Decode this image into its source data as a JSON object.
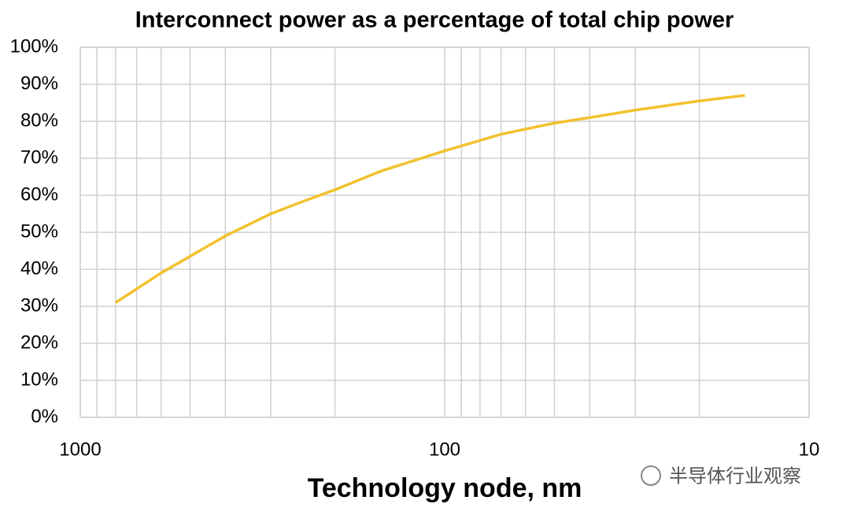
{
  "chart_data": {
    "type": "line",
    "title": "Interconnect power as a percentage of total chip power",
    "x_label": "Technology node, nm",
    "x": [
      800,
      600,
      500,
      400,
      300,
      250,
      200,
      150,
      100,
      70,
      50,
      40,
      30,
      20,
      15
    ],
    "series": [
      {
        "name": "Interconnect power",
        "color": "#f2c12e",
        "values": [
          31,
          39,
          43.5,
          49,
          55,
          58,
          61.5,
          66.5,
          72,
          76.5,
          79.5,
          81,
          83,
          85.5,
          87
        ]
      }
    ],
    "xscale": "log",
    "xlim": [
      1000,
      10
    ],
    "xticks": [
      1000,
      100,
      10
    ],
    "ylim": [
      0,
      100
    ],
    "yticks": [
      {
        "value": 0,
        "label": "0%"
      },
      {
        "value": 10,
        "label": "10%"
      },
      {
        "value": 20,
        "label": "20%"
      },
      {
        "value": 30,
        "label": "30%"
      },
      {
        "value": 40,
        "label": "40%"
      },
      {
        "value": 50,
        "label": "50%"
      },
      {
        "value": 60,
        "label": "60%"
      },
      {
        "value": 70,
        "label": "70%"
      },
      {
        "value": 80,
        "label": "80%"
      },
      {
        "value": 90,
        "label": "90%"
      },
      {
        "value": 100,
        "label": "100%"
      }
    ],
    "grid": true,
    "watermark": "半导体行业观察"
  }
}
